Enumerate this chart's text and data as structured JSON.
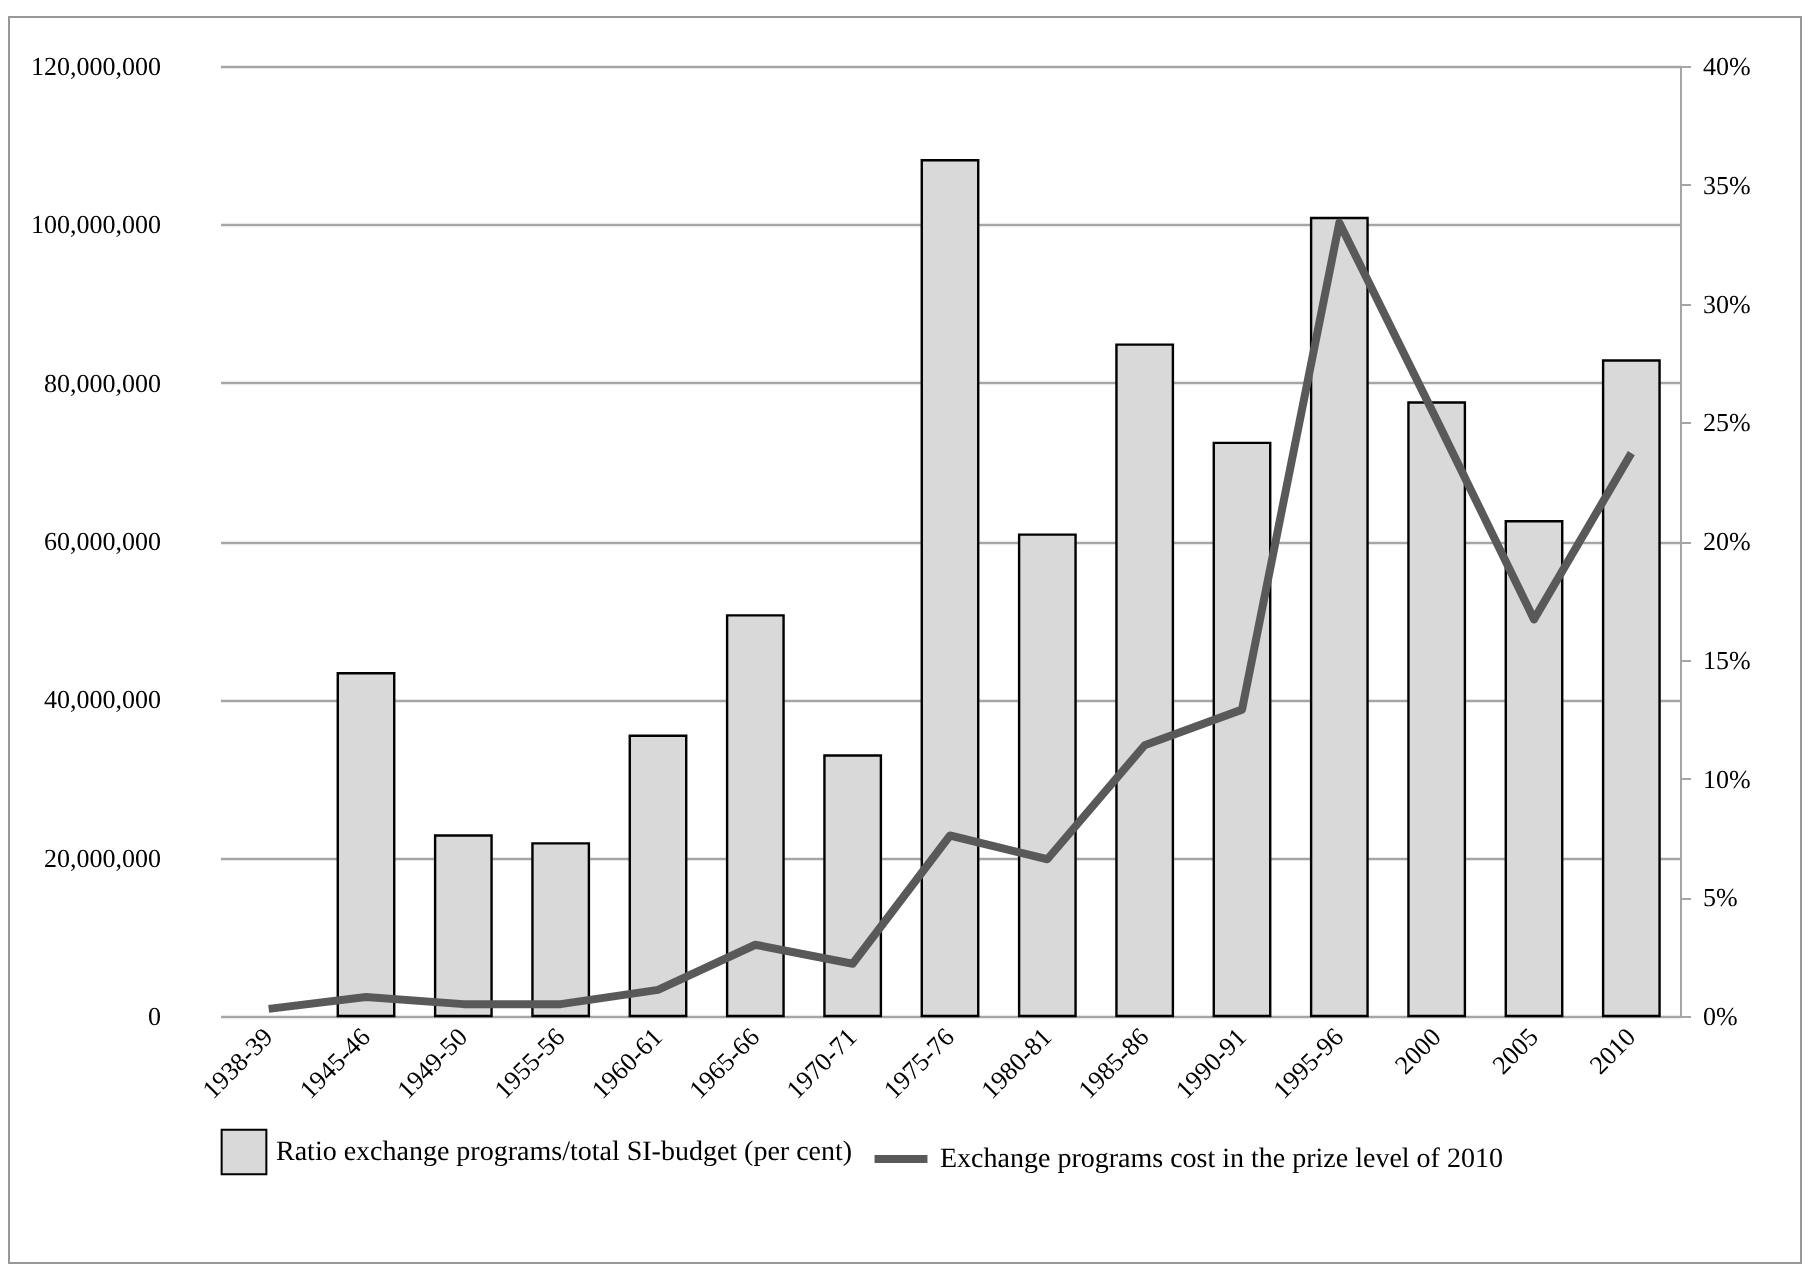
{
  "chart_data": {
    "type": "bar",
    "categories": [
      "1938-39",
      "1945-46",
      "1949-50",
      "1955-56",
      "1960-61",
      "1965-66",
      "1970-71",
      "1975-76",
      "1980-81",
      "1985-86",
      "1990-91",
      "1995-96",
      "2000",
      "2005",
      "2010"
    ],
    "series": [
      {
        "name": "Ratio exchange programs/total SI-budget (per cent)",
        "color": "#d9d9d9",
        "values": [
          null,
          43300000,
          22800000,
          21800000,
          35400000,
          50600000,
          32900000,
          108100000,
          60800000,
          84800000,
          72400000,
          100800000,
          77500000,
          62500000,
          82800000
        ]
      },
      {
        "name": "Exchange programs cost in the prize level of 2010",
        "type": "line",
        "axis": "y2",
        "color": "#595959",
        "values": [
          0.3,
          0.8,
          0.5,
          0.5,
          1.1,
          3.0,
          2.2,
          7.6,
          6.6,
          11.4,
          12.9,
          33.4,
          25.1,
          16.7,
          23.7
        ]
      }
    ],
    "ylim": [
      0,
      120000000
    ],
    "yticks": [
      0,
      {
        "value": 20000000,
        "label": "20,000,000"
      },
      {
        "value": 40000000,
        "label": "40,000,000"
      },
      {
        "value": 60000000,
        "label": "60,000,000"
      },
      {
        "value": 80000000,
        "label": "80,000,000"
      },
      {
        "value": 100000000,
        "label": "100,000,000"
      },
      {
        "value": 120000000,
        "label": "120,000,000"
      }
    ],
    "y2lim": [
      0,
      40
    ],
    "y2ticks": [
      {
        "value": 0,
        "label": "0%"
      },
      {
        "value": 5,
        "label": "5%"
      },
      {
        "value": 10,
        "label": "10%"
      },
      {
        "value": 15,
        "label": "15%"
      },
      {
        "value": 20,
        "label": "20%"
      },
      {
        "value": 25,
        "label": "25%"
      },
      {
        "value": 30,
        "label": "30%"
      },
      {
        "value": 35,
        "label": "35%"
      },
      {
        "value": 40,
        "label": "40%"
      }
    ],
    "grid": "y",
    "legend": "bottom",
    "marker": "none",
    "line_style": "solid"
  }
}
